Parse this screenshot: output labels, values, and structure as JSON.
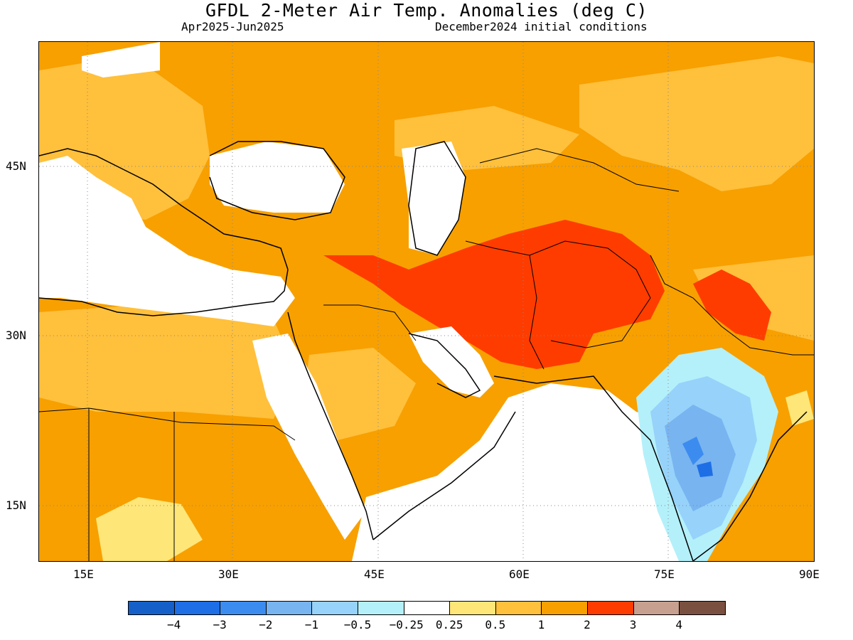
{
  "header": {
    "title": "GFDL 2-Meter Air Temp. Anomalies (deg C)",
    "period": "Apr2025-Jun2025",
    "init": "December2024 initial conditions"
  },
  "axes": {
    "lat_labels": [
      "45N",
      "30N",
      "15N"
    ],
    "lon_labels": [
      "15E",
      "30E",
      "45E",
      "60E",
      "75E",
      "90E"
    ],
    "lon_range": [
      10,
      90
    ],
    "lat_range": [
      10,
      55
    ]
  },
  "colorbar": {
    "colors": [
      "#1460c8",
      "#1e6ee6",
      "#3c8cf0",
      "#78b4f0",
      "#96d2fa",
      "#b4f0fa",
      "#ffffff",
      "#ffe678",
      "#ffc03c",
      "#f7a000",
      "#ff3c00",
      "#c8a090",
      "#7a5040"
    ],
    "labels": [
      "−4",
      "−3",
      "−2",
      "−1",
      "−0.5",
      "−0.25",
      "0.25",
      "0.5",
      "1",
      "2",
      "3",
      "4"
    ]
  },
  "legend_colors": {
    "white": "#ffffff",
    "light_orange": "#ffc03c",
    "orange": "#f7a000",
    "red": "#ff3c00",
    "pale_yellow": "#ffe678",
    "pale_blue": "#b4f0fa",
    "light_blue": "#96d2fa",
    "mid_blue": "#78b4f0",
    "blue": "#3c8cf0",
    "deep_blue": "#1e6ee6"
  }
}
